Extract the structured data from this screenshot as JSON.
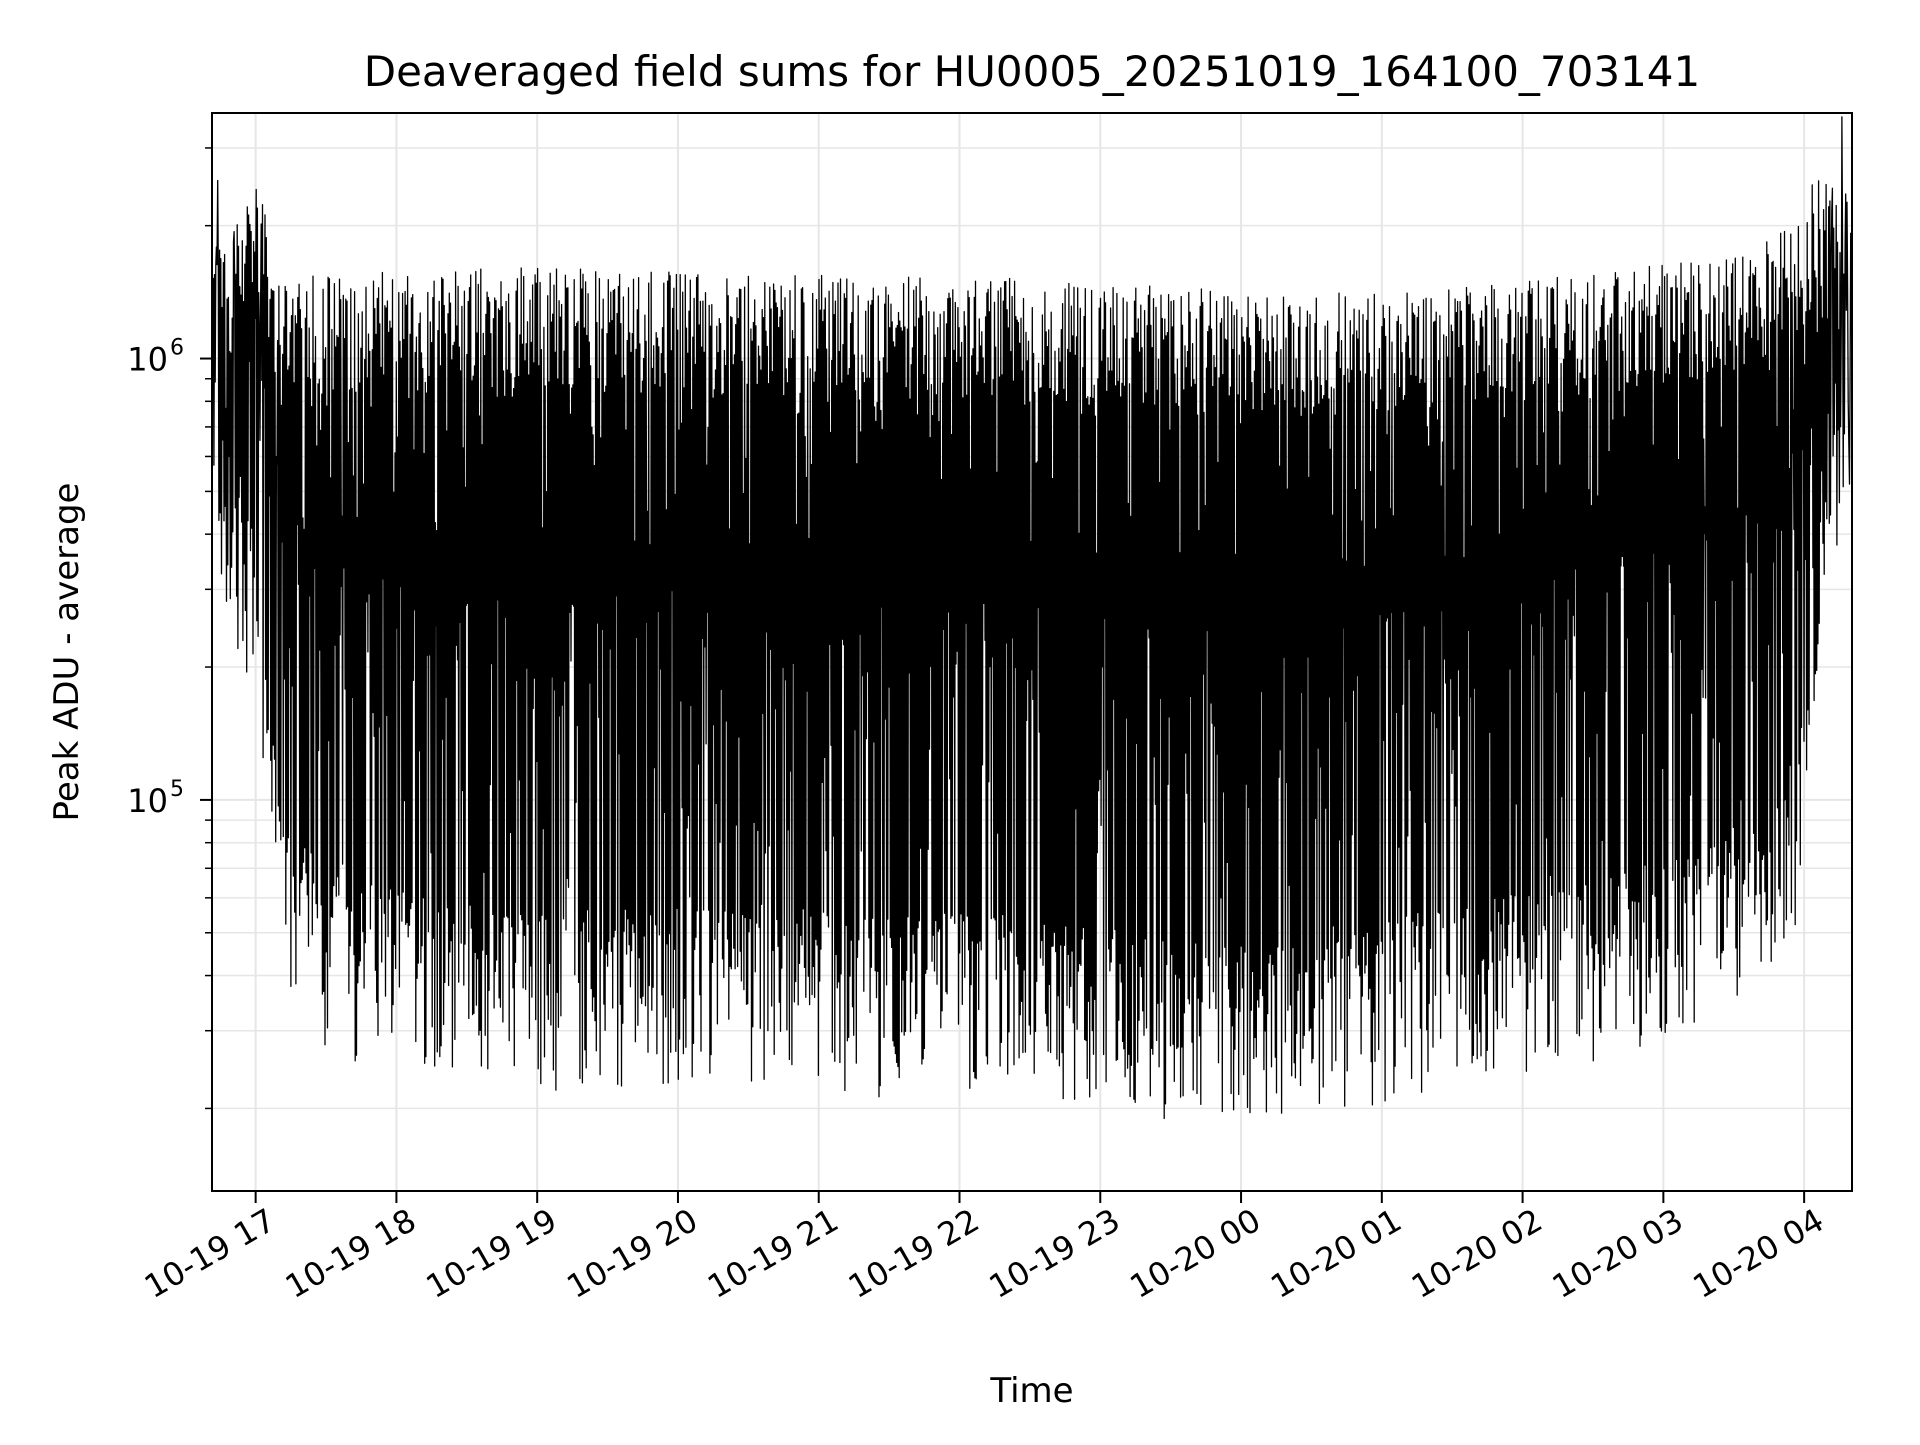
{
  "chart_data": {
    "type": "line",
    "title": "Deaveraged field sums for HU0005_20251019_164100_703141",
    "xlabel": "Time",
    "ylabel": "Peak ADU - average",
    "yscale": "log",
    "xlim_hours": [
      16.69,
      28.34
    ],
    "ylim": [
      13000,
      3600000
    ],
    "grid": true,
    "line_color": "#000000",
    "x_ticks": [
      {
        "hour": 17,
        "label": "10-19 17"
      },
      {
        "hour": 18,
        "label": "10-19 18"
      },
      {
        "hour": 19,
        "label": "10-19 19"
      },
      {
        "hour": 20,
        "label": "10-19 20"
      },
      {
        "hour": 21,
        "label": "10-19 21"
      },
      {
        "hour": 22,
        "label": "10-19 22"
      },
      {
        "hour": 23,
        "label": "10-19 23"
      },
      {
        "hour": 24,
        "label": "10-20 00"
      },
      {
        "hour": 25,
        "label": "10-20 01"
      },
      {
        "hour": 26,
        "label": "10-20 02"
      },
      {
        "hour": 27,
        "label": "10-20 03"
      },
      {
        "hour": 28,
        "label": "10-20 04"
      }
    ],
    "y_ticks": [
      {
        "value": 100000,
        "base": "10",
        "exp": "5"
      },
      {
        "value": 1000000,
        "base": "10",
        "exp": "6"
      }
    ],
    "series": [
      {
        "name": "deaveraged field sum",
        "envelope": {
          "hours": [
            16.69,
            16.75,
            16.85,
            16.95,
            17.05,
            17.1,
            17.2,
            17.3,
            17.5,
            17.8,
            18.2,
            18.6,
            19.0,
            19.5,
            20.0,
            20.5,
            21.0,
            21.5,
            22.0,
            22.5,
            23.0,
            23.5,
            24.0,
            24.5,
            25.0,
            25.5,
            26.0,
            26.5,
            27.0,
            27.5,
            27.8,
            28.0,
            28.1,
            28.2,
            28.34
          ],
          "upper": [
            1700000,
            1750000,
            1900000,
            2500000,
            2200000,
            1750000,
            1450000,
            1450000,
            1500000,
            1500000,
            1500000,
            1550000,
            1550000,
            1520000,
            1500000,
            1480000,
            1480000,
            1470000,
            1460000,
            1440000,
            1420000,
            1380000,
            1360000,
            1340000,
            1350000,
            1400000,
            1460000,
            1500000,
            1550000,
            1650000,
            1800000,
            2100000,
            2600000,
            2400000,
            1600000
          ],
          "lower": [
            700000,
            350000,
            300000,
            250000,
            150000,
            80000,
            50000,
            42000,
            36000,
            33000,
            32000,
            30000,
            29000,
            29000,
            30000,
            30000,
            29000,
            28000,
            29000,
            28000,
            27000,
            25000,
            24000,
            25000,
            27000,
            30000,
            32000,
            34000,
            38000,
            45000,
            50000,
            80000,
            280000,
            450000,
            550000
          ]
        }
      }
    ]
  }
}
